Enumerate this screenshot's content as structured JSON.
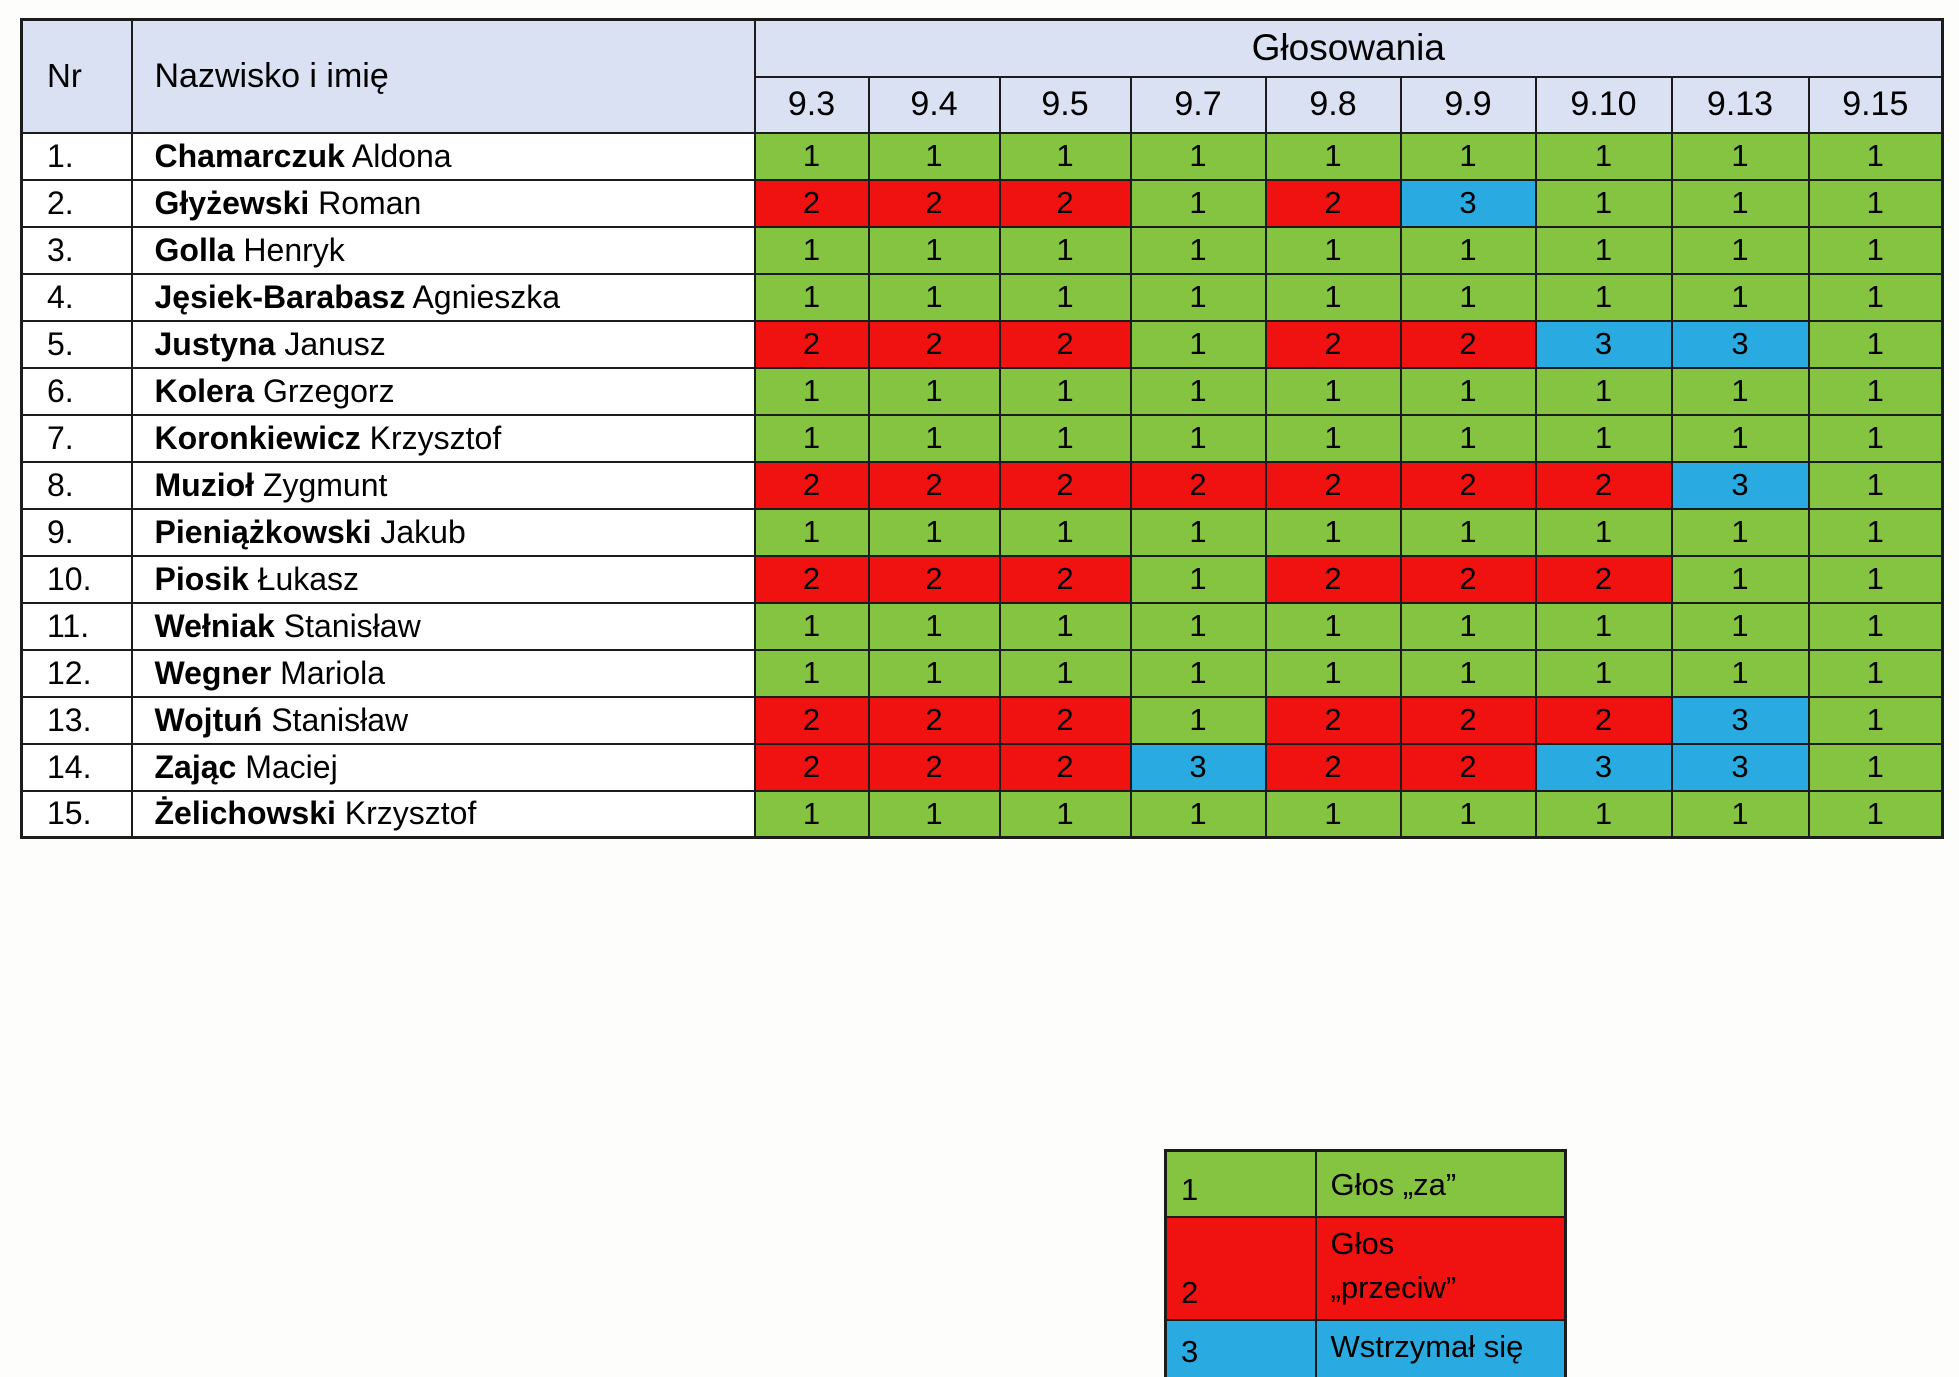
{
  "colors": {
    "vote_for": "#85C441",
    "vote_against": "#F01111",
    "vote_abstain": "#29ABE2",
    "header_bg": "#D9E1F2"
  },
  "table": {
    "headers": {
      "nr": "Nr",
      "name": "Nazwisko i imię",
      "votes_group": "Głosowania"
    },
    "vote_columns": [
      "9.3",
      "9.4",
      "9.5",
      "9.7",
      "9.8",
      "9.9",
      "9.10",
      "9.13",
      "9.15"
    ],
    "rows": [
      {
        "nr": "1.",
        "surname": "Chamarczuk",
        "given": "Aldona",
        "votes": [
          1,
          1,
          1,
          1,
          1,
          1,
          1,
          1,
          1
        ]
      },
      {
        "nr": "2.",
        "surname": "Głyżewski",
        "given": "Roman",
        "votes": [
          2,
          2,
          2,
          1,
          2,
          3,
          1,
          1,
          1
        ]
      },
      {
        "nr": "3.",
        "surname": "Golla",
        "given": "Henryk",
        "votes": [
          1,
          1,
          1,
          1,
          1,
          1,
          1,
          1,
          1
        ]
      },
      {
        "nr": "4.",
        "surname": "Jęsiek-Barabasz",
        "given": "Agnieszka",
        "votes": [
          1,
          1,
          1,
          1,
          1,
          1,
          1,
          1,
          1
        ]
      },
      {
        "nr": "5.",
        "surname": "Justyna",
        "given": "Janusz",
        "votes": [
          2,
          2,
          2,
          1,
          2,
          2,
          3,
          3,
          1
        ]
      },
      {
        "nr": "6.",
        "surname": "Kolera",
        "given": "Grzegorz",
        "votes": [
          1,
          1,
          1,
          1,
          1,
          1,
          1,
          1,
          1
        ]
      },
      {
        "nr": "7.",
        "surname": "Koronkiewicz",
        "given": "Krzysztof",
        "votes": [
          1,
          1,
          1,
          1,
          1,
          1,
          1,
          1,
          1
        ]
      },
      {
        "nr": "8.",
        "surname": "Muzioł",
        "given": "Zygmunt",
        "votes": [
          2,
          2,
          2,
          2,
          2,
          2,
          2,
          3,
          1
        ]
      },
      {
        "nr": "9.",
        "surname": "Pieniążkowski",
        "given": "Jakub",
        "votes": [
          1,
          1,
          1,
          1,
          1,
          1,
          1,
          1,
          1
        ]
      },
      {
        "nr": "10.",
        "surname": "Piosik",
        "given": "Łukasz",
        "votes": [
          2,
          2,
          2,
          1,
          2,
          2,
          2,
          1,
          1
        ]
      },
      {
        "nr": "11.",
        "surname": "Wełniak",
        "given": "Stanisław",
        "votes": [
          1,
          1,
          1,
          1,
          1,
          1,
          1,
          1,
          1
        ]
      },
      {
        "nr": "12.",
        "surname": "Wegner",
        "given": "Mariola",
        "votes": [
          1,
          1,
          1,
          1,
          1,
          1,
          1,
          1,
          1
        ]
      },
      {
        "nr": "13.",
        "surname": "Wojtuń",
        "given": "Stanisław",
        "votes": [
          2,
          2,
          2,
          1,
          2,
          2,
          2,
          3,
          1
        ]
      },
      {
        "nr": "14.",
        "surname": "Zając",
        "given": "Maciej",
        "votes": [
          2,
          2,
          2,
          3,
          2,
          2,
          3,
          3,
          1
        ]
      },
      {
        "nr": "15.",
        "surname": "Żelichowski",
        "given": "Krzysztof",
        "votes": [
          1,
          1,
          1,
          1,
          1,
          1,
          1,
          1,
          1
        ]
      }
    ]
  },
  "legend": {
    "items": [
      {
        "value": "1",
        "label": "Głos „za”"
      },
      {
        "value": "2",
        "label": "Głos\n„przeciw”"
      },
      {
        "value": "3",
        "label": "Wstrzymał się"
      }
    ]
  }
}
